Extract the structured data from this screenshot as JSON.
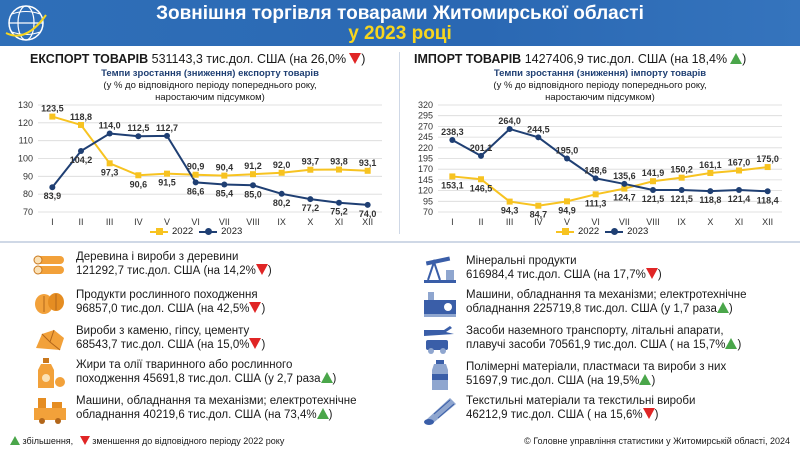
{
  "header": {
    "title_line1": "Зовнішня торгівля товарами Житомирської області",
    "title_line2": "у 2023 році"
  },
  "export": {
    "label": "ЕКСПОРТ ТОВАРІВ",
    "value": "531143,3 тис.дол. США (на 26,0%",
    "change_dir": "down"
  },
  "import": {
    "label": "ІМПОРТ ТОВАРІВ",
    "value": "1427406,9 тис.дол. США (на 18,4%",
    "change_dir": "up"
  },
  "export_sub": {
    "line1": "Темпи зростання (зниження) експорту товарів",
    "line2": "(у % до відповідного періоду попереднього року,",
    "line3": "наростаючим підсумком)"
  },
  "import_sub": {
    "line1": "Темпи зростання (зниження) імпорту товарів",
    "line2": "(у % до відповідного періоду попереднього року,",
    "line3": "наростаючим підсумком)"
  },
  "legend": {
    "s2022": "2022",
    "s2023": "2023"
  },
  "colors": {
    "banner": "#2f6fb8",
    "title_line2": "#f7d51e",
    "series_2022": "#f7c321",
    "series_2023": "#1f3f73",
    "up": "#4aa64a",
    "down": "#e02525",
    "icon_orange": "#f2a13a"
  },
  "chart_data": [
    {
      "type": "line",
      "categories": [
        "I",
        "II",
        "III",
        "IV",
        "V",
        "VI",
        "VII",
        "VIII",
        "IX",
        "X",
        "XI",
        "XII"
      ],
      "series": [
        {
          "name": "2022",
          "values": [
            123.5,
            118.8,
            97.3,
            90.6,
            91.5,
            90.9,
            90.4,
            91.2,
            92.0,
            93.7,
            93.8,
            93.1
          ]
        },
        {
          "name": "2023",
          "values": [
            83.9,
            104.2,
            114.0,
            112.5,
            112.7,
            86.6,
            85.4,
            85.0,
            80.2,
            77.2,
            75.2,
            74.0
          ]
        }
      ],
      "ylim": [
        70,
        130
      ],
      "yticks": [
        "70",
        "80",
        "90",
        "100",
        "110",
        "120",
        "130"
      ],
      "grid": true,
      "legend": "bottom"
    },
    {
      "type": "line",
      "categories": [
        "I",
        "II",
        "III",
        "IV",
        "V",
        "VI",
        "VII",
        "VIII",
        "IX",
        "X",
        "XI",
        "XII"
      ],
      "series": [
        {
          "name": "2022",
          "values": [
            153.1,
            146.5,
            94.3,
            84.7,
            94.9,
            111.3,
            124.7,
            141.9,
            150.2,
            161.1,
            167.0,
            175.0
          ]
        },
        {
          "name": "2023",
          "values": [
            238.3,
            201.1,
            264.0,
            244.5,
            195.0,
            148.6,
            135.6,
            121.5,
            121.5,
            118.8,
            121.4,
            118.4
          ]
        }
      ],
      "ylim": [
        70,
        320
      ],
      "yticks": [
        "70",
        "95",
        "120",
        "145",
        "170",
        "195",
        "220",
        "245",
        "270",
        "295",
        "320"
      ],
      "grid": true,
      "legend": "bottom"
    }
  ],
  "export_items": [
    {
      "icon": "logs-icon",
      "line1": "Деревина і вироби з деревини",
      "line2": "121292,7  тис.дол. США (на 14,2%",
      "dir": "down"
    },
    {
      "icon": "nuts-icon",
      "line1": "Продукти рослинного походження",
      "line2": "96857,0 тис.дол. США (на 42,5%",
      "dir": "down"
    },
    {
      "icon": "stone-icon",
      "line1": "Вироби з каменю, гіпсу, цементу",
      "line2": "68543,7 тис.дол. США (на 15,0%",
      "dir": "down"
    },
    {
      "icon": "oil-bottle-icon",
      "line1": "Жири та олії тваринного або рослинного",
      "line2": "походження 45691,8 тис.дол. США (у 2,7 раза",
      "dir": "up"
    },
    {
      "icon": "machinery-icon",
      "line1": "Машини, обладнання та механізми; електротехнічне",
      "line2": "обладнання 40219,6 тис.дол. США (на 73,4%",
      "dir": "up"
    }
  ],
  "import_items": [
    {
      "icon": "oil-pump-icon",
      "line1": "Мінеральні продукти",
      "line2": "616984,4 тис.дол. США (на 17,7%",
      "dir": "down"
    },
    {
      "icon": "factory-machine-icon",
      "line1": "Машини, обладнання та механізми; електротехнічне",
      "line2": "обладнання 225719,8 тис.дол. США (у 1,7 раза",
      "dir": "up"
    },
    {
      "icon": "transport-icon",
      "line1": "Засоби наземного транспорту, літальні апарати,",
      "line2": "плавучі засоби 70561,9 тис.дол. США ( на 15,7%",
      "dir": "up"
    },
    {
      "icon": "plastic-bottle-icon",
      "line1": "Полімерні матеріали, пластмаси та вироби з них",
      "line2": "51697,9 тис.дол. США (на 19,5%",
      "dir": "up"
    },
    {
      "icon": "fabric-roll-icon",
      "line1": "Текстильні матеріали та текстильні вироби",
      "line2": "46212,9 тис.дол. США ( на 15,6%",
      "dir": "down"
    }
  ],
  "footer": {
    "increase": "збільшення,",
    "decrease": "зменшення до відповідного періоду 2022 року",
    "source": "© Головне управління статистики у Житомирській області, 2024"
  }
}
